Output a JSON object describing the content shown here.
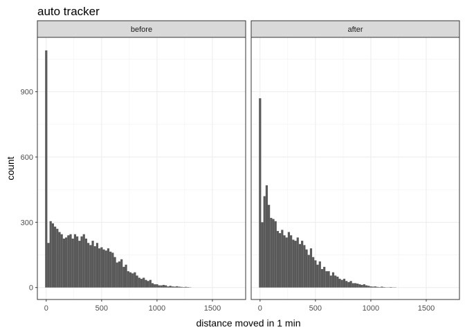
{
  "chart_data": {
    "type": "bar",
    "title": "auto tracker",
    "xlabel": "distance moved in 1 min",
    "ylabel": "count",
    "facet_labels": [
      "before",
      "after"
    ],
    "xlim": [
      -80,
      1800
    ],
    "ylim": [
      -55,
      1150
    ],
    "x_ticks": [
      0,
      500,
      1000,
      1500
    ],
    "y_ticks": [
      0,
      300,
      600,
      900
    ],
    "grid": true,
    "bin_width": 20,
    "bar_color": "#595959",
    "panels": [
      {
        "name": "before",
        "bin_starts": [
          -10,
          10,
          30,
          50,
          70,
          90,
          110,
          130,
          150,
          170,
          190,
          210,
          230,
          250,
          270,
          290,
          310,
          330,
          350,
          370,
          390,
          410,
          430,
          450,
          470,
          490,
          510,
          530,
          550,
          570,
          590,
          610,
          630,
          650,
          670,
          690,
          710,
          730,
          750,
          770,
          790,
          810,
          830,
          850,
          870,
          890,
          910,
          930,
          950,
          970,
          990,
          1010,
          1030,
          1050,
          1070,
          1090,
          1110,
          1130,
          1150,
          1170,
          1190,
          1210,
          1230,
          1250,
          1270,
          1290
        ],
        "counts": [
          1090,
          205,
          305,
          295,
          280,
          270,
          255,
          245,
          225,
          230,
          240,
          245,
          225,
          245,
          235,
          215,
          235,
          245,
          225,
          205,
          195,
          215,
          190,
          205,
          180,
          185,
          175,
          170,
          180,
          165,
          160,
          140,
          115,
          120,
          130,
          95,
          105,
          75,
          70,
          65,
          70,
          55,
          45,
          40,
          45,
          35,
          30,
          35,
          20,
          15,
          15,
          10,
          10,
          12,
          10,
          5,
          8,
          5,
          4,
          6,
          4,
          3,
          2,
          3,
          2,
          1
        ]
      },
      {
        "name": "after",
        "bin_starts": [
          -10,
          10,
          30,
          50,
          70,
          90,
          110,
          130,
          150,
          170,
          190,
          210,
          230,
          250,
          270,
          290,
          310,
          330,
          350,
          370,
          390,
          410,
          430,
          450,
          470,
          490,
          510,
          530,
          550,
          570,
          590,
          610,
          630,
          650,
          670,
          690,
          710,
          730,
          750,
          770,
          790,
          810,
          830,
          850,
          870,
          890,
          910,
          930,
          950,
          970,
          990,
          1010,
          1030,
          1050,
          1070,
          1090,
          1110,
          1130,
          1150,
          1170,
          1190,
          1210
        ],
        "counts": [
          870,
          300,
          420,
          470,
          380,
          320,
          315,
          305,
          260,
          250,
          265,
          240,
          230,
          255,
          240,
          220,
          215,
          230,
          200,
          215,
          195,
          175,
          150,
          180,
          140,
          125,
          105,
          120,
          85,
          95,
          75,
          75,
          55,
          70,
          55,
          50,
          40,
          35,
          40,
          30,
          25,
          30,
          20,
          20,
          18,
          15,
          12,
          15,
          10,
          8,
          5,
          4,
          5,
          3,
          2,
          4,
          2,
          1,
          1,
          2,
          1,
          1
        ]
      }
    ]
  }
}
